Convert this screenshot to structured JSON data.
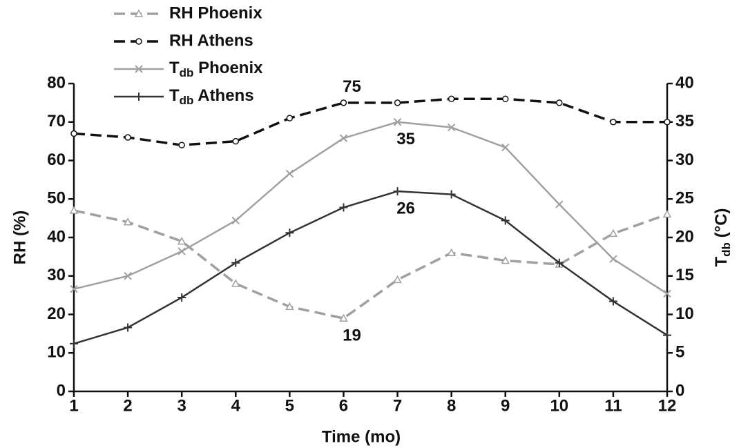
{
  "chart_data": {
    "type": "line",
    "x": [
      1,
      2,
      3,
      4,
      5,
      6,
      7,
      8,
      9,
      10,
      11,
      12
    ],
    "xlim": [
      1,
      12
    ],
    "xticks": [
      1,
      2,
      3,
      4,
      5,
      6,
      7,
      8,
      9,
      10,
      11,
      12
    ],
    "ylim": [
      0,
      80
    ],
    "yticks": [
      0,
      10,
      20,
      30,
      40,
      50,
      60,
      70,
      80
    ],
    "y2lim": [
      0,
      40
    ],
    "y2ticks": [
      0,
      5,
      10,
      15,
      20,
      25,
      30,
      35,
      40
    ],
    "xlabel": "Time (mo)",
    "ylabel": "RH (%)",
    "y2label": "Tdb (°C)",
    "legend": "top-left",
    "series": [
      {
        "name": "RH Phoenix",
        "color": "#a0a0a0",
        "line_style": "dashed",
        "marker": "triangle",
        "values": [
          47,
          44,
          39,
          28,
          22,
          19,
          29,
          36,
          34,
          33,
          41,
          46
        ],
        "value_labels": [
          null,
          null,
          null,
          null,
          null,
          "19",
          null,
          null,
          null,
          null,
          null,
          null
        ]
      },
      {
        "name": "RH Athens",
        "color": "#111111",
        "line_style": "dashed",
        "marker": "circle",
        "values": [
          67,
          66,
          64,
          65,
          71,
          75,
          75,
          76,
          76,
          75,
          70,
          70
        ],
        "value_labels": [
          null,
          null,
          null,
          null,
          null,
          "75",
          null,
          null,
          null,
          null,
          null,
          null
        ]
      },
      {
        "name": "Tdb Phoenix",
        "color": "#a0a0a0",
        "line_style": "solid",
        "marker": "x",
        "axis": "y2",
        "values": [
          13.3,
          15.0,
          18.2,
          22.2,
          28.3,
          32.9,
          35,
          34.3,
          31.7,
          24.3,
          17.2,
          12.7
        ],
        "value_labels": [
          null,
          null,
          null,
          null,
          null,
          null,
          "35",
          null,
          null,
          null,
          null,
          null
        ]
      },
      {
        "name": "Tdb Athens",
        "color": "#333333",
        "line_style": "solid",
        "marker": "plus",
        "axis": "y2",
        "values": [
          6.2,
          8.3,
          12.2,
          16.7,
          20.6,
          23.9,
          26,
          25.6,
          22.2,
          16.7,
          11.7,
          7.3
        ],
        "value_labels": [
          null,
          null,
          null,
          null,
          null,
          null,
          "26",
          null,
          null,
          null,
          null,
          null
        ]
      }
    ]
  }
}
